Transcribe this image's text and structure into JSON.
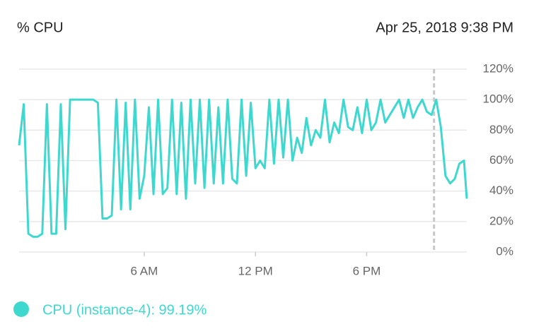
{
  "chart_data": {
    "type": "line",
    "title": "% CPU",
    "cursor": {
      "value": 21.633,
      "label": "Apr 25, 2018 9:38 PM"
    },
    "x": [
      -0.75,
      -0.5,
      -0.25,
      0,
      0.25,
      0.5,
      0.75,
      1,
      1.25,
      1.5,
      1.75,
      2,
      2.25,
      2.5,
      2.75,
      3,
      3.25,
      3.5,
      3.75,
      4,
      4.25,
      4.5,
      4.75,
      5,
      5.25,
      5.5,
      5.75,
      6,
      6.25,
      6.5,
      6.75,
      7,
      7.25,
      7.5,
      7.75,
      8,
      8.25,
      8.5,
      8.75,
      9,
      9.25,
      9.5,
      9.75,
      10,
      10.25,
      10.5,
      10.75,
      11,
      11.25,
      11.5,
      11.75,
      12,
      12.25,
      12.5,
      12.75,
      13,
      13.25,
      13.5,
      13.75,
      14,
      14.25,
      14.5,
      14.75,
      15,
      15.25,
      15.5,
      15.75,
      16,
      16.25,
      16.5,
      16.75,
      17,
      17.25,
      17.5,
      17.75,
      18,
      18.25,
      18.5,
      18.75,
      19,
      19.25,
      19.5,
      19.75,
      20,
      20.25,
      20.5,
      20.75,
      21,
      21.25,
      21.5,
      21.75,
      22,
      22.25,
      22.5,
      22.75,
      23,
      23.25,
      23.4
    ],
    "series": [
      {
        "name": "CPU (instance-4): 99.19%",
        "color": "#3fd8cf",
        "values": [
          70,
          97,
          12,
          10,
          10,
          12,
          97,
          12,
          12,
          97,
          15,
          100,
          100,
          100,
          100,
          100,
          100,
          98,
          22,
          22,
          24,
          100,
          28,
          98,
          28,
          100,
          35,
          50,
          95,
          38,
          100,
          38,
          42,
          100,
          38,
          98,
          35,
          100,
          45,
          100,
          42,
          100,
          45,
          95,
          45,
          100,
          48,
          45,
          100,
          50,
          98,
          55,
          60,
          55,
          100,
          58,
          100,
          62,
          100,
          60,
          75,
          65,
          88,
          70,
          80,
          75,
          100,
          72,
          85,
          78,
          100,
          82,
          80,
          95,
          78,
          100,
          80,
          85,
          100,
          85,
          90,
          95,
          100,
          88,
          100,
          88,
          95,
          100,
          92,
          90,
          100,
          82,
          50,
          45,
          48,
          58,
          60,
          35
        ]
      }
    ],
    "xlim": [
      -0.75,
      23.4
    ],
    "xticks": [
      {
        "value": 6,
        "label": "6 AM"
      },
      {
        "value": 12,
        "label": "12 PM"
      },
      {
        "value": 18,
        "label": "6 PM"
      }
    ],
    "ylim": [
      0,
      120
    ],
    "yticks": [
      {
        "value": 0,
        "label": "0%"
      },
      {
        "value": 20,
        "label": "20%"
      },
      {
        "value": 40,
        "label": "40%"
      },
      {
        "value": 60,
        "label": "60%"
      },
      {
        "value": 80,
        "label": "80%"
      },
      {
        "value": 100,
        "label": "100%"
      },
      {
        "value": 120,
        "label": "120%"
      }
    ],
    "grid": true
  }
}
